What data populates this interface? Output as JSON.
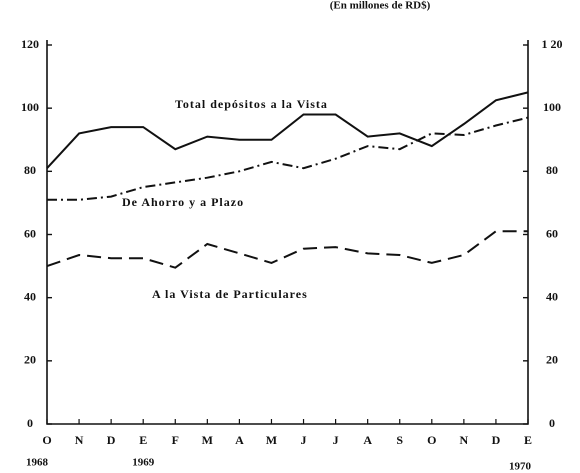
{
  "chart_data": {
    "type": "line",
    "title": "(En millones de RD$)",
    "categories": [
      "O",
      "N",
      "D",
      "E",
      "F",
      "M",
      "A",
      "M",
      "J",
      "J",
      "A",
      "S",
      "O",
      "N",
      "D",
      "E"
    ],
    "annotations": [
      "1968",
      "1969",
      "1970"
    ],
    "ylim": [
      0,
      120
    ],
    "yticks": [
      0,
      20,
      40,
      60,
      80,
      100,
      120
    ],
    "y2lim": [
      0,
      120
    ],
    "y2ticks": [
      0,
      20,
      40,
      60,
      80,
      100,
      {
        "value": 120,
        "label": "1 20"
      }
    ],
    "series": [
      {
        "name": "Total depósitos a la Vista",
        "color": "#111111",
        "linestyle": "solid",
        "values": [
          81,
          92,
          94,
          94,
          87,
          91,
          90,
          90,
          98,
          98,
          91,
          92,
          88,
          95,
          102.5,
          105
        ]
      },
      {
        "name": "De Ahorro y a Plazo",
        "color": "#111111",
        "linestyle": "dashdot",
        "values": [
          71,
          71,
          72,
          75,
          76.5,
          78,
          80,
          83,
          81,
          84,
          88,
          87,
          92,
          91.5,
          94.5,
          97
        ]
      },
      {
        "name": "A la Vista de Particulares",
        "color": "#111111",
        "linestyle": "dashed",
        "values": [
          50,
          53.5,
          52.5,
          52.5,
          49.5,
          57,
          54,
          51,
          55.5,
          56,
          54,
          53.5,
          51,
          53.5,
          61,
          61
        ]
      }
    ]
  }
}
